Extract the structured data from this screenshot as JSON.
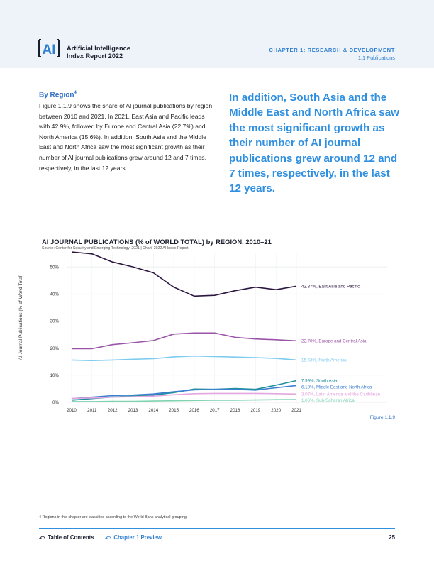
{
  "header": {
    "logo_text": "AI",
    "title_line1": "Artificial Intelligence",
    "title_line2": "Index Report 2022",
    "chapter": "CHAPTER 1: RESEARCH & DEVELOPMENT",
    "section": "1.1 Publications"
  },
  "body": {
    "heading": "By Region",
    "heading_footnote_mark": "4",
    "paragraph": "Figure 1.1.9 shows the share of AI journal publications by region between 2010 and 2021. In 2021, East Asia and Pacific leads with 42.9%, followed by Europe and Central Asia (22.7%) and North America (15.6%). In addition, South Asia and the Middle East and North Africa saw the most significant growth as their number of AI journal publications grew around 12 and 7 times, respectively, in the last 12 years.",
    "callout": "In addition, South Asia and the Middle East and North Africa saw the most significant growth as their number of AI journal publications grew around 12 and 7 times, respectively, in the last 12 years."
  },
  "chart_data": {
    "type": "line",
    "title": "AI JOURNAL PUBLICATIONS (% of WORLD TOTAL) by REGION, 2010–21",
    "source": "Source: Center for Security and Emerging Technology, 2021 | Chart: 2022 AI Index Report",
    "xlabel": "",
    "ylabel": "AI Journal Publications (% of World Total)",
    "x": [
      "2010",
      "2011",
      "2012",
      "2013",
      "2014",
      "2015",
      "2016",
      "2017",
      "2018",
      "2019",
      "2020",
      "2021"
    ],
    "ylim": [
      0,
      55
    ],
    "yticks": [
      "0%",
      "10%",
      "20%",
      "30%",
      "40%",
      "50%"
    ],
    "ytick_values": [
      0,
      10,
      20,
      30,
      40,
      50
    ],
    "grid": true,
    "series": [
      {
        "name": "East Asia and Pacific",
        "end_label": "42.87%, East Asia and Pacific",
        "color": "#2b1640",
        "values": [
          55.5,
          54.8,
          51.8,
          50.0,
          47.8,
          42.5,
          39.2,
          39.5,
          41.2,
          42.5,
          41.6,
          42.87
        ]
      },
      {
        "name": "Europe and Central Asia",
        "end_label": "22.70%, Europe and Central Asia",
        "color": "#9b55a8",
        "values": [
          19.8,
          19.8,
          21.3,
          22.0,
          22.8,
          25.2,
          25.6,
          25.6,
          24.0,
          23.4,
          23.1,
          22.7
        ]
      },
      {
        "name": "North America",
        "end_label": "15.63%, North America",
        "color": "#7dcbee",
        "values": [
          15.6,
          15.4,
          15.6,
          15.9,
          16.1,
          16.8,
          17.1,
          16.9,
          16.7,
          16.5,
          16.2,
          15.63
        ]
      },
      {
        "name": "South Asia",
        "end_label": "7.99%, South Asia",
        "color": "#1d8f9c",
        "values": [
          0.8,
          1.4,
          2.0,
          2.3,
          2.7,
          3.6,
          4.9,
          4.8,
          5.1,
          4.8,
          6.3,
          7.99
        ]
      },
      {
        "name": "Middle East and North Africa",
        "end_label": "6.18%, Middle East and North Africa",
        "color": "#3b7fd0",
        "values": [
          1.4,
          1.9,
          2.5,
          2.7,
          3.1,
          3.9,
          4.6,
          4.8,
          4.8,
          4.5,
          5.4,
          6.18
        ]
      },
      {
        "name": "Latin America and the Caribbean",
        "end_label": "3.07%, Latin America and the Caribbean",
        "color": "#e3a6df",
        "values": [
          1.5,
          1.6,
          1.9,
          2.1,
          2.3,
          2.8,
          3.2,
          3.3,
          3.3,
          3.3,
          3.2,
          3.07
        ]
      },
      {
        "name": "Sub-Saharan Africa",
        "end_label": "1.06%, Sub-Saharan Africa",
        "color": "#7fd3b0",
        "values": [
          0.3,
          0.3,
          0.4,
          0.4,
          0.5,
          0.6,
          0.7,
          0.8,
          0.8,
          0.9,
          1.0,
          1.06
        ]
      }
    ],
    "figure_label": "Figure 1.1.9"
  },
  "footnote": {
    "prefix": "4 Regions in this chapter are classified according to the ",
    "link": "World Bank",
    "suffix": " analytical grouping."
  },
  "footer": {
    "toc": "Table of Contents",
    "preview": "Chapter 1 Preview",
    "page": "25"
  }
}
